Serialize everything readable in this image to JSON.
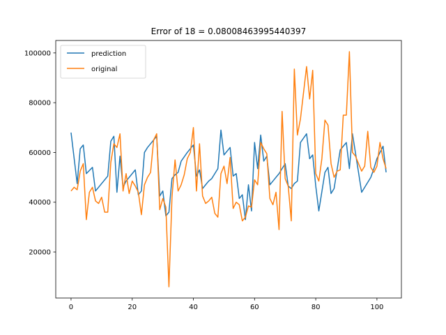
{
  "chart_data": {
    "type": "line",
    "title": "Error of 18 = 0.08008463995440397",
    "xlabel": "",
    "ylabel": "",
    "xlim": [
      -5,
      108
    ],
    "ylim": [
      1500,
      105000
    ],
    "xticks": [
      0,
      20,
      40,
      60,
      80,
      100
    ],
    "yticks": [
      20000,
      40000,
      60000,
      80000,
      100000
    ],
    "grid": false,
    "legend_placement": "top-left",
    "series": [
      {
        "name": "prediction",
        "color": "#1f77b4",
        "x": [
          0,
          2,
          3,
          4,
          5,
          7,
          8,
          12,
          13,
          14,
          15,
          16,
          17,
          18,
          19,
          21,
          22,
          23,
          24,
          25,
          28,
          29,
          30,
          31,
          32,
          33,
          34,
          35,
          36,
          38,
          40,
          41,
          42,
          43,
          44,
          45,
          46,
          48,
          49,
          50,
          52,
          53,
          54,
          55,
          56,
          57,
          58,
          59,
          60,
          61,
          62,
          63,
          64,
          65,
          66,
          68,
          70,
          71,
          72,
          73,
          74,
          75,
          77,
          78,
          79,
          80,
          81,
          83,
          84,
          85,
          86,
          88,
          89,
          90,
          91,
          92,
          95,
          98,
          99,
          100,
          102,
          103
        ],
        "y": [
          68000,
          47500,
          61500,
          63000,
          51500,
          54000,
          44500,
          50500,
          64500,
          66500,
          44000,
          58500,
          46000,
          48500,
          50000,
          53000,
          43000,
          44500,
          60000,
          62000,
          66500,
          42500,
          44500,
          34500,
          36000,
          49500,
          51000,
          52000,
          56500,
          60000,
          63000,
          50500,
          53000,
          45500,
          47000,
          48500,
          49500,
          53500,
          69000,
          59000,
          62000,
          50500,
          51500,
          41500,
          43000,
          33000,
          47000,
          36500,
          64000,
          53500,
          67000,
          56500,
          58500,
          47000,
          48500,
          51500,
          55500,
          46500,
          45500,
          47500,
          48500,
          64000,
          67500,
          57500,
          59000,
          46500,
          36500,
          52000,
          54000,
          43500,
          45500,
          61000,
          62500,
          64000,
          53500,
          67500,
          44000,
          50000,
          53500,
          57500,
          62500,
          52000
        ]
      },
      {
        "name": "original",
        "color": "#ff7f0e",
        "x": [
          0,
          1,
          2,
          3,
          4,
          5,
          6,
          7,
          8,
          9,
          10,
          11,
          12,
          13,
          14,
          15,
          16,
          17,
          18,
          19,
          20,
          21,
          22,
          23,
          24,
          25,
          26,
          27,
          28,
          29,
          30,
          31,
          32,
          33,
          34,
          35,
          36,
          37,
          38,
          39,
          40,
          41,
          42,
          43,
          44,
          45,
          46,
          47,
          48,
          49,
          50,
          51,
          52,
          53,
          54,
          55,
          56,
          57,
          58,
          59,
          60,
          61,
          62,
          63,
          64,
          65,
          66,
          67,
          68,
          69,
          70,
          71,
          72,
          73,
          74,
          75,
          76,
          77,
          78,
          79,
          80,
          81,
          82,
          83,
          84,
          85,
          86,
          87,
          88,
          89,
          90,
          91,
          92,
          93,
          94,
          95,
          96,
          97,
          98,
          99,
          100,
          101,
          102,
          103
        ],
        "y": [
          44500,
          46000,
          45000,
          52500,
          55500,
          33000,
          44000,
          46000,
          40500,
          39500,
          42000,
          36000,
          36000,
          56000,
          63500,
          62000,
          67500,
          44500,
          51500,
          43500,
          48500,
          46500,
          44000,
          35000,
          47000,
          50000,
          52000,
          65000,
          67500,
          37000,
          41500,
          38000,
          6000,
          42000,
          57000,
          44500,
          47000,
          51000,
          57500,
          60000,
          70000,
          44500,
          63500,
          42500,
          39500,
          40500,
          42000,
          35500,
          34000,
          51500,
          54500,
          47500,
          58000,
          37500,
          40000,
          39000,
          32500,
          34000,
          38500,
          38000,
          49000,
          47000,
          64000,
          61500,
          59500,
          41500,
          39000,
          44000,
          29000,
          76500,
          49500,
          46500,
          32500,
          93500,
          67000,
          73500,
          84000,
          94500,
          81500,
          93000,
          51500,
          48500,
          57500,
          73000,
          71000,
          55500,
          50000,
          52500,
          53000,
          75000,
          75000,
          100500,
          60000,
          58500,
          55500,
          52500,
          54500,
          68500,
          54000,
          52000,
          54500,
          64000,
          57500,
          53500
        ]
      }
    ]
  }
}
